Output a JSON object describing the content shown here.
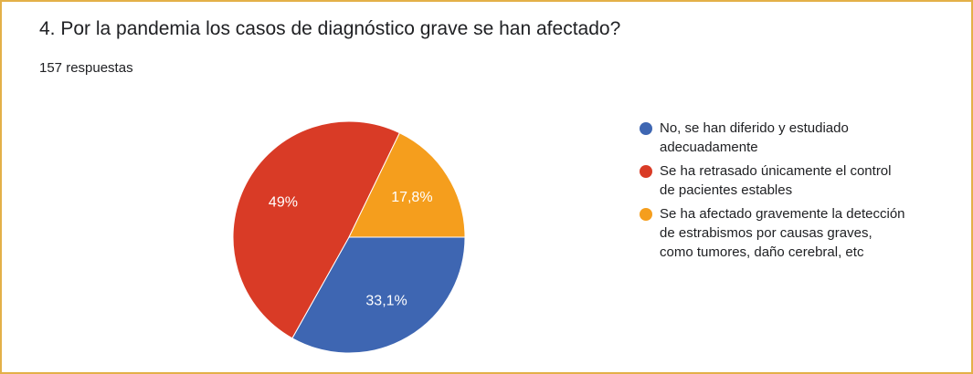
{
  "question": {
    "title": "4. Por la pandemia los casos de diagnóstico grave se han afectado?",
    "response_count": "157 respuestas"
  },
  "colors": {
    "border": "#e3b048",
    "blue": "#3e66b2",
    "red": "#d93b26",
    "orange": "#f59e1d"
  },
  "chart_data": {
    "type": "pie",
    "title": "4. Por la pandemia los casos de diagnóstico grave se han afectado?",
    "legend_position": "right",
    "slices": [
      {
        "label": "No, se han diferido y estudiado adecuadamente",
        "label_lines": [
          "No, se han diferido y estudiado",
          "adecuadamente"
        ],
        "value": 33.1,
        "display": "33,1%",
        "color": "#3e66b2"
      },
      {
        "label": "Se ha retrasado únicamente el control de pacientes estables",
        "label_lines": [
          "Se ha retrasado únicamente el control",
          "de pacientes estables"
        ],
        "value": 49,
        "display": "49%",
        "color": "#d93b26"
      },
      {
        "label": "Se ha afectado gravemente la detección de estrabismos por causas graves, como tumores, daño cerebral, etc",
        "label_lines": [
          "Se ha afectado gravemente la detección",
          "de estrabismos por causas graves,",
          "como tumores, daño cerebral, etc"
        ],
        "value": 17.8,
        "display": "17,8%",
        "color": "#f59e1d"
      }
    ]
  }
}
